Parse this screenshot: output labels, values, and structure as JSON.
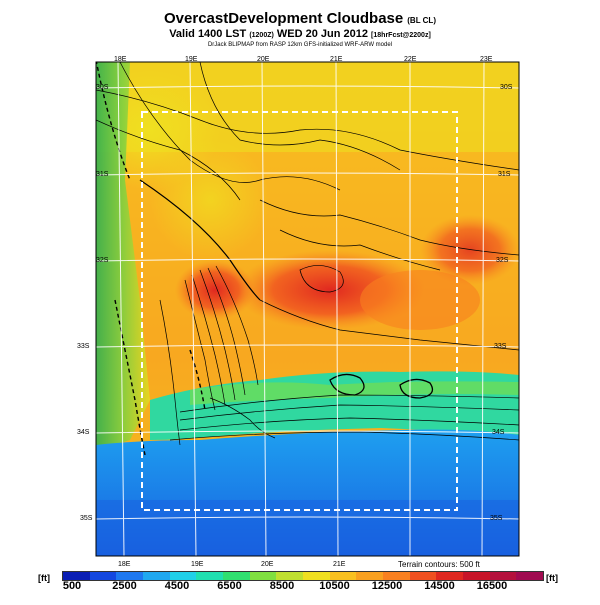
{
  "header": {
    "title": "OvercastDevelopment Cloudbase",
    "title_tag": "(BL CL)",
    "valid_text": "Valid 1400 LST",
    "valid_code": "(1200Z)",
    "valid_date": "WED 20 Jun 2012",
    "valid_suffix": "[18hrFcst@2200z]",
    "source": "DrJack BLIPMAP from RASP 12km GFS-initialized WRF-ARW model"
  },
  "map": {
    "lon_labels_top": [
      "18E",
      "19E",
      "20E",
      "21E",
      "22E",
      "23E"
    ],
    "lon_labels_bottom": [
      "18E",
      "19E",
      "20E",
      "21E"
    ],
    "lat_labels_left": [
      "30S",
      "31S",
      "32S",
      "33S",
      "34S",
      "35S"
    ],
    "lat_labels_right": [
      "30S",
      "31S",
      "32S",
      "33S",
      "34S",
      "35S"
    ],
    "terrain_note": "Terrain contours: 500 ft"
  },
  "colorbar": {
    "unit_left": "[ft]",
    "unit_right": "[ft]",
    "labels": [
      "500",
      "2500",
      "4500",
      "6500",
      "8500",
      "10500",
      "12500",
      "14500",
      "16500"
    ],
    "colors": [
      "#0a1eb4",
      "#1448e0",
      "#1e78f0",
      "#20a8f0",
      "#20d0e8",
      "#20e0b0",
      "#30e070",
      "#80e040",
      "#c0e030",
      "#f0e020",
      "#f8c020",
      "#f8a020",
      "#f88020",
      "#f05020",
      "#e02820",
      "#c81428",
      "#b4103c",
      "#a00a50"
    ]
  }
}
